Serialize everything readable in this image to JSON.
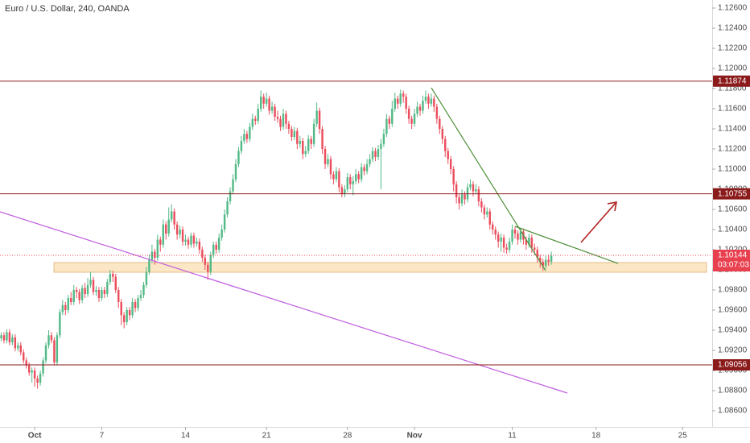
{
  "chart_data": {
    "type": "candlestick",
    "title": "Euro / U.S. Dollar, 240, OANDA",
    "up_color": "#53b987",
    "down_color": "#eb4d5c",
    "xlim": [
      -0.43,
      254.6
    ],
    "xticks": [
      {
        "value": 12,
        "label": "Oct"
      },
      {
        "value": 36,
        "label": "7"
      },
      {
        "value": 66,
        "label": "14"
      },
      {
        "value": 95,
        "label": "21"
      },
      {
        "value": 124,
        "label": "28"
      },
      {
        "value": 148,
        "label": "Nov"
      },
      {
        "value": 183,
        "label": "11"
      },
      {
        "value": 213,
        "label": "18"
      },
      {
        "value": 244,
        "label": "25"
      }
    ],
    "ylim": [
      1.0844,
      1.1268
    ],
    "yticks": [
      {
        "value": 1.126,
        "label": "1.12600"
      },
      {
        "value": 1.124,
        "label": "1.12400"
      },
      {
        "value": 1.122,
        "label": "1.12200"
      },
      {
        "value": 1.12,
        "label": "1.12000"
      },
      {
        "value": 1.118,
        "label": "1.11800"
      },
      {
        "value": 1.116,
        "label": "1.11600"
      },
      {
        "value": 1.114,
        "label": "1.11400"
      },
      {
        "value": 1.112,
        "label": "1.11200"
      },
      {
        "value": 1.11,
        "label": "1.11000"
      },
      {
        "value": 1.108,
        "label": "1.10800"
      },
      {
        "value": 1.106,
        "label": "1.10600"
      },
      {
        "value": 1.104,
        "label": "1.10400"
      },
      {
        "value": 1.102,
        "label": "1.10200"
      },
      {
        "value": 1.1,
        "label": "1.10000"
      },
      {
        "value": 1.098,
        "label": "1.09800"
      },
      {
        "value": 1.096,
        "label": "1.09600"
      },
      {
        "value": 1.094,
        "label": "1.09400"
      },
      {
        "value": 1.092,
        "label": "1.09200"
      },
      {
        "value": 1.09,
        "label": "1.09000"
      },
      {
        "value": 1.088,
        "label": "1.08800"
      },
      {
        "value": 1.086,
        "label": "1.08600"
      }
    ],
    "grid": false,
    "levels": [
      1.11874,
      1.10755,
      1.09056
    ],
    "level_color": "#8b1a1a",
    "last_price": 1.10144,
    "countdown": "03:07:03",
    "last_color": "#e8404f",
    "candles": [
      [
        1.0932,
        1.0938,
        1.0929,
        1.0935
      ],
      [
        1.0935,
        1.0938,
        1.0927,
        1.093
      ],
      [
        1.093,
        1.0941,
        1.0927,
        1.0938
      ],
      [
        1.0938,
        1.0941,
        1.0925,
        1.0928
      ],
      [
        1.0928,
        1.0936,
        1.0925,
        1.0933
      ],
      [
        1.0933,
        1.0936,
        1.0919,
        1.0922
      ],
      [
        1.0922,
        1.0928,
        1.0919,
        1.0925
      ],
      [
        1.0925,
        1.0928,
        1.0915,
        1.0918
      ],
      [
        1.0918,
        1.0921,
        1.0907,
        1.091
      ],
      [
        1.091,
        1.0913,
        1.0902,
        1.0905
      ],
      [
        1.0905,
        1.0908,
        1.0895,
        1.0898
      ],
      [
        1.0898,
        1.0903,
        1.0888,
        1.09
      ],
      [
        1.09,
        1.0903,
        1.0884,
        1.0892
      ],
      [
        1.0892,
        1.0895,
        1.0882,
        1.0888
      ],
      [
        1.0888,
        1.09,
        1.0885,
        1.0897
      ],
      [
        1.0897,
        1.0913,
        1.0894,
        1.091
      ],
      [
        1.091,
        1.0928,
        1.0907,
        1.0925
      ],
      [
        1.0925,
        1.094,
        1.0922,
        1.0935
      ],
      [
        1.0935,
        1.0938,
        1.0927,
        1.093
      ],
      [
        1.093,
        1.0933,
        1.0905,
        1.0908
      ],
      [
        1.0908,
        1.0938,
        1.0905,
        1.0935
      ],
      [
        1.0935,
        1.0961,
        1.0932,
        1.0958
      ],
      [
        1.0958,
        1.097,
        1.0955,
        1.0965
      ],
      [
        1.0965,
        1.0968,
        1.0955,
        1.096
      ],
      [
        1.096,
        1.0975,
        1.0957,
        1.0972
      ],
      [
        1.0972,
        1.0978,
        1.0965,
        1.0968
      ],
      [
        1.0968,
        1.0985,
        1.0965,
        1.098
      ],
      [
        1.098,
        1.0983,
        1.0972,
        1.0978
      ],
      [
        1.0978,
        1.0981,
        1.0966,
        1.097
      ],
      [
        1.097,
        1.0985,
        1.0967,
        1.0982
      ],
      [
        1.0982,
        1.0987,
        1.0972,
        1.0976
      ],
      [
        1.0976,
        1.0992,
        1.0973,
        1.0985
      ],
      [
        1.0985,
        1.0998,
        1.0982,
        1.099
      ],
      [
        1.099,
        1.0993,
        1.0975,
        1.0978
      ],
      [
        1.0978,
        1.0984,
        1.0974,
        1.098
      ],
      [
        1.098,
        1.0983,
        1.0968,
        1.0972
      ],
      [
        1.0972,
        1.0983,
        1.0969,
        1.098
      ],
      [
        1.098,
        1.0983,
        1.0972,
        1.0976
      ],
      [
        1.0976,
        1.0991,
        1.0973,
        1.0988
      ],
      [
        1.0988,
        1.1,
        1.0985,
        1.0996
      ],
      [
        1.0996,
        1.0999,
        1.0988,
        1.0993
      ],
      [
        1.0993,
        1.0996,
        1.0977,
        1.098
      ],
      [
        1.098,
        1.0983,
        1.0962,
        1.0968
      ],
      [
        1.0968,
        1.0971,
        1.0945,
        1.0955
      ],
      [
        1.0955,
        1.0958,
        1.0942,
        1.0948
      ],
      [
        1.0948,
        1.0963,
        1.0945,
        1.096
      ],
      [
        1.096,
        1.0963,
        1.095,
        1.0955
      ],
      [
        1.0955,
        1.0972,
        1.0952,
        1.0968
      ],
      [
        1.0968,
        1.0971,
        1.0958,
        1.0962
      ],
      [
        1.0962,
        1.0975,
        1.0959,
        1.0972
      ],
      [
        1.0972,
        1.098,
        1.0969,
        1.0975
      ],
      [
        1.0975,
        1.0988,
        1.0972,
        1.0985
      ],
      [
        1.0985,
        1.1003,
        1.0982,
        1.0998
      ],
      [
        1.0998,
        1.1015,
        1.0995,
        1.101
      ],
      [
        1.101,
        1.1025,
        1.1007,
        1.1018
      ],
      [
        1.1018,
        1.1021,
        1.1005,
        1.1012
      ],
      [
        1.1012,
        1.1035,
        1.1009,
        1.103
      ],
      [
        1.103,
        1.1033,
        1.1018,
        1.1025
      ],
      [
        1.1025,
        1.105,
        1.1022,
        1.1045
      ],
      [
        1.1045,
        1.1048,
        1.103,
        1.1036
      ],
      [
        1.1036,
        1.1062,
        1.1033,
        1.105
      ],
      [
        1.105,
        1.1065,
        1.1047,
        1.1058
      ],
      [
        1.1058,
        1.1061,
        1.104,
        1.1045
      ],
      [
        1.1045,
        1.1048,
        1.103,
        1.1035
      ],
      [
        1.1035,
        1.1044,
        1.1031,
        1.104
      ],
      [
        1.104,
        1.1043,
        1.1024,
        1.1028
      ],
      [
        1.1028,
        1.1035,
        1.1024,
        1.103
      ],
      [
        1.103,
        1.1033,
        1.1021,
        1.1025
      ],
      [
        1.1025,
        1.1037,
        1.1022,
        1.1034
      ],
      [
        1.1034,
        1.1037,
        1.1022,
        1.1026
      ],
      [
        1.1026,
        1.1032,
        1.1023,
        1.1028
      ],
      [
        1.1028,
        1.1031,
        1.1016,
        1.102
      ],
      [
        1.102,
        1.1023,
        1.1008,
        1.1012
      ],
      [
        1.1012,
        1.1015,
        1.1,
        1.1005
      ],
      [
        1.1005,
        1.1008,
        1.099,
        1.0998
      ],
      [
        1.0998,
        1.1018,
        1.0995,
        1.1015
      ],
      [
        1.1015,
        1.1028,
        1.1012,
        1.1025
      ],
      [
        1.1025,
        1.1028,
        1.1016,
        1.102
      ],
      [
        1.102,
        1.1036,
        1.1017,
        1.1032
      ],
      [
        1.1032,
        1.1045,
        1.1029,
        1.104
      ],
      [
        1.104,
        1.106,
        1.1037,
        1.1055
      ],
      [
        1.1055,
        1.1072,
        1.1052,
        1.1068
      ],
      [
        1.1068,
        1.1082,
        1.1065,
        1.1078
      ],
      [
        1.1078,
        1.1095,
        1.1075,
        1.109
      ],
      [
        1.109,
        1.111,
        1.1087,
        1.1105
      ],
      [
        1.1105,
        1.1122,
        1.1102,
        1.1118
      ],
      [
        1.1118,
        1.1133,
        1.1115,
        1.1128
      ],
      [
        1.1128,
        1.114,
        1.1125,
        1.1135
      ],
      [
        1.1135,
        1.1138,
        1.1126,
        1.113
      ],
      [
        1.113,
        1.1146,
        1.1127,
        1.1142
      ],
      [
        1.1142,
        1.1155,
        1.1139,
        1.115
      ],
      [
        1.115,
        1.1153,
        1.1144,
        1.1148
      ],
      [
        1.1148,
        1.1165,
        1.1145,
        1.116
      ],
      [
        1.116,
        1.1178,
        1.1157,
        1.1172
      ],
      [
        1.1172,
        1.1175,
        1.116,
        1.1165
      ],
      [
        1.1165,
        1.1176,
        1.1162,
        1.117
      ],
      [
        1.117,
        1.1173,
        1.1154,
        1.1158
      ],
      [
        1.1158,
        1.1167,
        1.1155,
        1.1162
      ],
      [
        1.1162,
        1.1165,
        1.1148,
        1.1152
      ],
      [
        1.1152,
        1.1158,
        1.1146,
        1.115
      ],
      [
        1.115,
        1.1153,
        1.1138,
        1.1142
      ],
      [
        1.1142,
        1.116,
        1.1139,
        1.1155
      ],
      [
        1.1155,
        1.1158,
        1.114,
        1.1145
      ],
      [
        1.1145,
        1.1148,
        1.1135,
        1.114
      ],
      [
        1.114,
        1.1143,
        1.1128,
        1.1132
      ],
      [
        1.1132,
        1.1142,
        1.1129,
        1.1138
      ],
      [
        1.1138,
        1.1141,
        1.112,
        1.1125
      ],
      [
        1.1125,
        1.1133,
        1.1121,
        1.1128
      ],
      [
        1.1128,
        1.1131,
        1.111,
        1.1115
      ],
      [
        1.1115,
        1.1123,
        1.1112,
        1.1118
      ],
      [
        1.1118,
        1.1134,
        1.1115,
        1.113
      ],
      [
        1.113,
        1.1133,
        1.112,
        1.1125
      ],
      [
        1.1125,
        1.115,
        1.1122,
        1.1145
      ],
      [
        1.1145,
        1.1166,
        1.1142,
        1.1158
      ],
      [
        1.1158,
        1.1161,
        1.1135,
        1.114
      ],
      [
        1.114,
        1.1143,
        1.1115,
        1.112
      ],
      [
        1.112,
        1.1123,
        1.11,
        1.1105
      ],
      [
        1.1105,
        1.1115,
        1.1102,
        1.111
      ],
      [
        1.111,
        1.1113,
        1.109,
        1.1095
      ],
      [
        1.1095,
        1.1098,
        1.1085,
        1.109
      ],
      [
        1.109,
        1.1102,
        1.1087,
        1.1098
      ],
      [
        1.1098,
        1.1101,
        1.1077,
        1.1082
      ],
      [
        1.1082,
        1.1085,
        1.1072,
        1.1075
      ],
      [
        1.1075,
        1.1084,
        1.1072,
        1.108
      ],
      [
        1.108,
        1.1096,
        1.1077,
        1.1092
      ],
      [
        1.1092,
        1.1095,
        1.108,
        1.1085
      ],
      [
        1.1085,
        1.1093,
        1.1074,
        1.1088
      ],
      [
        1.1088,
        1.11,
        1.1085,
        1.1095
      ],
      [
        1.1095,
        1.1098,
        1.1086,
        1.109
      ],
      [
        1.109,
        1.1106,
        1.1087,
        1.1102
      ],
      [
        1.1102,
        1.1105,
        1.1094,
        1.1098
      ],
      [
        1.1098,
        1.111,
        1.1095,
        1.1105
      ],
      [
        1.1105,
        1.1115,
        1.1102,
        1.111
      ],
      [
        1.111,
        1.1122,
        1.1107,
        1.1118
      ],
      [
        1.1118,
        1.1121,
        1.1108,
        1.1112
      ],
      [
        1.1112,
        1.1124,
        1.1109,
        1.112
      ],
      [
        1.112,
        1.113,
        1.108,
        1.1125
      ],
      [
        1.1125,
        1.114,
        1.1122,
        1.1135
      ],
      [
        1.1135,
        1.1155,
        1.1132,
        1.115
      ],
      [
        1.115,
        1.1153,
        1.114,
        1.1145
      ],
      [
        1.1145,
        1.1168,
        1.1142,
        1.116
      ],
      [
        1.116,
        1.1176,
        1.1157,
        1.117
      ],
      [
        1.117,
        1.1173,
        1.116,
        1.1165
      ],
      [
        1.1165,
        1.1179,
        1.1162,
        1.1175
      ],
      [
        1.1175,
        1.1178,
        1.1166,
        1.1172
      ],
      [
        1.1172,
        1.1175,
        1.1155,
        1.116
      ],
      [
        1.116,
        1.1163,
        1.1145,
        1.115
      ],
      [
        1.115,
        1.1153,
        1.114,
        1.1145
      ],
      [
        1.1145,
        1.116,
        1.1142,
        1.1155
      ],
      [
        1.1155,
        1.1167,
        1.1152,
        1.1162
      ],
      [
        1.1162,
        1.1165,
        1.1153,
        1.1158
      ],
      [
        1.1158,
        1.1173,
        1.1155,
        1.1168
      ],
      [
        1.1168,
        1.1178,
        1.1165,
        1.1172
      ],
      [
        1.1172,
        1.1175,
        1.116,
        1.1165
      ],
      [
        1.1165,
        1.1175,
        1.1162,
        1.117
      ],
      [
        1.117,
        1.1173,
        1.1157,
        1.1162
      ],
      [
        1.1162,
        1.1165,
        1.1145,
        1.115
      ],
      [
        1.115,
        1.1153,
        1.1135,
        1.114
      ],
      [
        1.114,
        1.1143,
        1.1125,
        1.113
      ],
      [
        1.113,
        1.1133,
        1.1112,
        1.1118
      ],
      [
        1.1118,
        1.1121,
        1.1105,
        1.111
      ],
      [
        1.111,
        1.1113,
        1.1095,
        1.11
      ],
      [
        1.11,
        1.1103,
        1.1078,
        1.1085
      ],
      [
        1.1085,
        1.1088,
        1.1066,
        1.1072
      ],
      [
        1.1072,
        1.1075,
        1.106,
        1.1066
      ],
      [
        1.1066,
        1.108,
        1.1063,
        1.1075
      ],
      [
        1.1075,
        1.1078,
        1.1065,
        1.107
      ],
      [
        1.107,
        1.1086,
        1.1067,
        1.1082
      ],
      [
        1.1082,
        1.109,
        1.1079,
        1.1085
      ],
      [
        1.1085,
        1.1088,
        1.1073,
        1.1078
      ],
      [
        1.1078,
        1.1085,
        1.1075,
        1.108
      ],
      [
        1.108,
        1.1083,
        1.1063,
        1.1068
      ],
      [
        1.1068,
        1.1071,
        1.1057,
        1.1062
      ],
      [
        1.1062,
        1.1065,
        1.105,
        1.1055
      ],
      [
        1.1055,
        1.1062,
        1.1052,
        1.1058
      ],
      [
        1.1058,
        1.1061,
        1.104,
        1.1045
      ],
      [
        1.1045,
        1.1048,
        1.1035,
        1.104
      ],
      [
        1.104,
        1.1043,
        1.103,
        1.1035
      ],
      [
        1.1035,
        1.1038,
        1.1022,
        1.1028
      ],
      [
        1.1028,
        1.1036,
        1.1018,
        1.1032
      ],
      [
        1.1032,
        1.1035,
        1.1017,
        1.1022
      ],
      [
        1.1022,
        1.1026,
        1.1016,
        1.102
      ],
      [
        1.102,
        1.1032,
        1.1017,
        1.1028
      ],
      [
        1.1028,
        1.1045,
        1.1025,
        1.104
      ],
      [
        1.104,
        1.1043,
        1.1031,
        1.1036
      ],
      [
        1.1036,
        1.1039,
        1.1025,
        1.103
      ],
      [
        1.103,
        1.1042,
        1.1027,
        1.1038
      ],
      [
        1.1038,
        1.1041,
        1.1025,
        1.103
      ],
      [
        1.103,
        1.1033,
        1.102,
        1.1025
      ],
      [
        1.1025,
        1.1036,
        1.1022,
        1.1032
      ],
      [
        1.1032,
        1.1035,
        1.1017,
        1.1022
      ],
      [
        1.1022,
        1.1026,
        1.1015,
        1.102
      ],
      [
        1.102,
        1.1023,
        1.1007,
        1.1012
      ],
      [
        1.1012,
        1.1015,
        1.1002,
        1.1008
      ],
      [
        1.1008,
        1.1011,
        1.0999,
        1.1004
      ],
      [
        1.1004,
        1.1014,
        1.1001,
        1.101
      ],
      [
        1.101,
        1.1015,
        1.1004,
        1.1008
      ],
      [
        1.1008,
        1.1018,
        1.1005,
        1.1014
      ]
    ]
  }
}
